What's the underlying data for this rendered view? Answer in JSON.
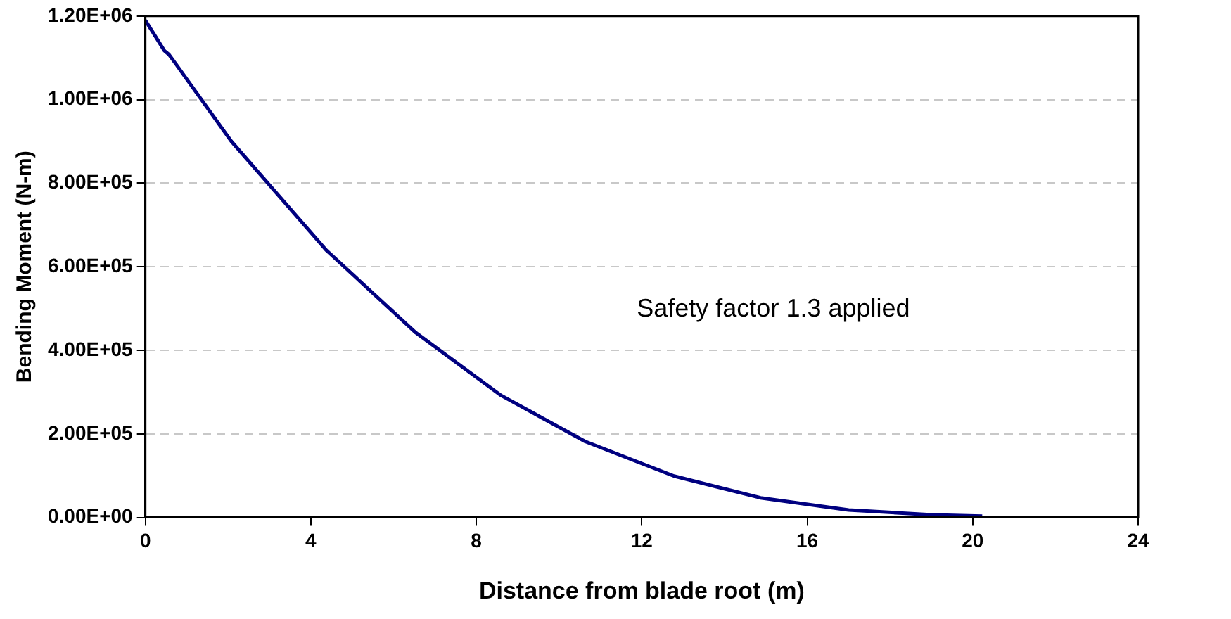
{
  "chart_data": {
    "type": "line",
    "xlabel": "Distance from blade root (m)",
    "ylabel": "Bending Moment (N-m)",
    "annotations": [
      "Safety factor 1.3 applied"
    ],
    "series": [
      {
        "color": "#000080",
        "x": [
          0,
          0.46,
          0.57,
          0.74,
          2.08,
          4.38,
          6.54,
          8.6,
          10.63,
          12.78,
          14.87,
          17.0,
          19.04,
          20.23
        ],
        "values": [
          1190000,
          1117000,
          1108000,
          1085000,
          900000,
          639000,
          442000,
          292000,
          182000,
          99000,
          47000,
          18000,
          6000,
          3000
        ]
      }
    ],
    "xlim": [
      0,
      24
    ],
    "xticks": [
      0,
      4,
      8,
      12,
      16,
      20,
      24
    ],
    "ylim": [
      0,
      1200000
    ],
    "yticks": [
      {
        "value": 0,
        "label": "0.00E+00"
      },
      {
        "value": 200000,
        "label": "2.00E+05"
      },
      {
        "value": 400000,
        "label": "4.00E+05"
      },
      {
        "value": 600000,
        "label": "6.00E+05"
      },
      {
        "value": 800000,
        "label": "8.00E+05"
      },
      {
        "value": 1000000,
        "label": "1.00E+06"
      },
      {
        "value": 1200000,
        "label": "1.20E+06"
      }
    ],
    "grid": "y",
    "legend": false,
    "marker": "none",
    "line_style": "solid"
  }
}
